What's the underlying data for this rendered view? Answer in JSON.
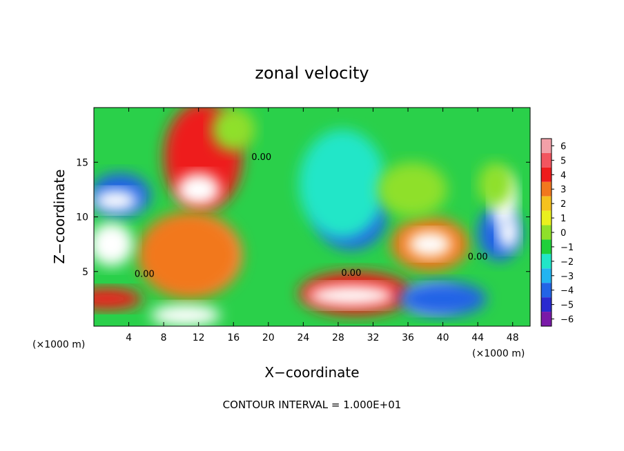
{
  "chart_data": {
    "type": "heatmap",
    "title": "zonal velocity",
    "xlabel": "X−coordinate",
    "ylabel": "Z−coordinate",
    "x_unit_left": "(×1000 m)",
    "x_unit_right": "(×1000 m)",
    "footer": "CONTOUR INTERVAL = 1.000E+01",
    "xlim": [
      0,
      50
    ],
    "ylim": [
      0,
      20
    ],
    "x_ticks": [
      4,
      8,
      12,
      16,
      20,
      24,
      28,
      32,
      36,
      40,
      44,
      48
    ],
    "x_tick_labels": [
      "4",
      "8",
      "12",
      "16",
      "20",
      "24",
      "28",
      "32",
      "36",
      "40",
      "44",
      "48"
    ],
    "y_ticks": [
      5,
      10,
      15
    ],
    "y_tick_labels": [
      "5",
      "10",
      "15"
    ],
    "contour_labels": [
      {
        "text": "0.00",
        "x": 5.8,
        "y": 4.5
      },
      {
        "text": "0.00",
        "x": 19.2,
        "y": 15.2
      },
      {
        "text": "0.00",
        "x": 29.5,
        "y": 4.6
      },
      {
        "text": "0.00",
        "x": 44.0,
        "y": 6.1
      }
    ],
    "colorbar": {
      "levels": [
        6,
        5,
        4,
        3,
        2,
        1,
        0,
        -1,
        -2,
        -3,
        -4,
        -5,
        -6
      ],
      "labels": [
        "6",
        "5",
        "4",
        "3",
        "2",
        "1",
        "0",
        "−1",
        "−2",
        "−3",
        "−4",
        "−5",
        "−6"
      ],
      "colors": [
        "#f2a0a8",
        "#f2555f",
        "#ee1c1c",
        "#f2781e",
        "#f5c21e",
        "#eaf01e",
        "#8fe02a",
        "#1fd03a",
        "#21e6c8",
        "#22b4f0",
        "#2264e6",
        "#2a2ad0",
        "#7a1aa8"
      ]
    },
    "features": [
      {
        "x": 12.5,
        "y": 15.5,
        "rx": 4.5,
        "ry": 5.0,
        "value": 4
      },
      {
        "x": 12.0,
        "y": 12.5,
        "rx": 2.5,
        "ry": 1.5,
        "value": 7
      },
      {
        "x": 12.0,
        "y": 6.5,
        "rx": 4.0,
        "ry": 2.5,
        "value": 7
      },
      {
        "x": 11.0,
        "y": 6.5,
        "rx": 6.0,
        "ry": 4.0,
        "value": 3
      },
      {
        "x": 30.0,
        "y": 3.0,
        "rx": 6.5,
        "ry": 2.0,
        "value": 4
      },
      {
        "x": 29.5,
        "y": 2.8,
        "rx": 5.0,
        "ry": 1.0,
        "value": 7
      },
      {
        "x": 38.5,
        "y": 7.5,
        "rx": 4.5,
        "ry": 2.5,
        "value": 3
      },
      {
        "x": 38.5,
        "y": 7.5,
        "rx": 2.5,
        "ry": 1.2,
        "value": 7
      },
      {
        "x": 29.5,
        "y": 10.0,
        "rx": 4.0,
        "ry": 3.0,
        "value": -4
      },
      {
        "x": 28.5,
        "y": 13.0,
        "rx": 5.0,
        "ry": 5.0,
        "value": -2
      },
      {
        "x": 3.0,
        "y": 12.0,
        "rx": 3.5,
        "ry": 2.0,
        "value": -4
      },
      {
        "x": 2.5,
        "y": 11.5,
        "rx": 2.5,
        "ry": 1.0,
        "value": 7
      },
      {
        "x": 2.0,
        "y": 7.5,
        "rx": 2.5,
        "ry": 2.0,
        "value": 7
      },
      {
        "x": 1.5,
        "y": 2.5,
        "rx": 4.0,
        "ry": 1.0,
        "value": 4
      },
      {
        "x": 46.5,
        "y": 8.5,
        "rx": 2.5,
        "ry": 2.5,
        "value": -4
      },
      {
        "x": 47.5,
        "y": 8.5,
        "rx": 1.2,
        "ry": 1.5,
        "value": 7
      },
      {
        "x": 47.0,
        "y": 11.5,
        "rx": 1.5,
        "ry": 2.5,
        "value": 7
      },
      {
        "x": 46.0,
        "y": 13.0,
        "rx": 2.0,
        "ry": 2.0,
        "value": 0
      },
      {
        "x": 39.0,
        "y": 2.5,
        "rx": 3.0,
        "ry": 1.2,
        "value": 7
      },
      {
        "x": 40.0,
        "y": 2.5,
        "rx": 5.0,
        "ry": 1.6,
        "value": -4
      },
      {
        "x": 10.5,
        "y": 1.0,
        "rx": 4.0,
        "ry": 1.0,
        "value": 7
      },
      {
        "x": 36.5,
        "y": 12.5,
        "rx": 4.0,
        "ry": 2.5,
        "value": 0
      },
      {
        "x": 16.0,
        "y": 18.0,
        "rx": 2.5,
        "ry": 2.0,
        "value": 0
      }
    ]
  }
}
